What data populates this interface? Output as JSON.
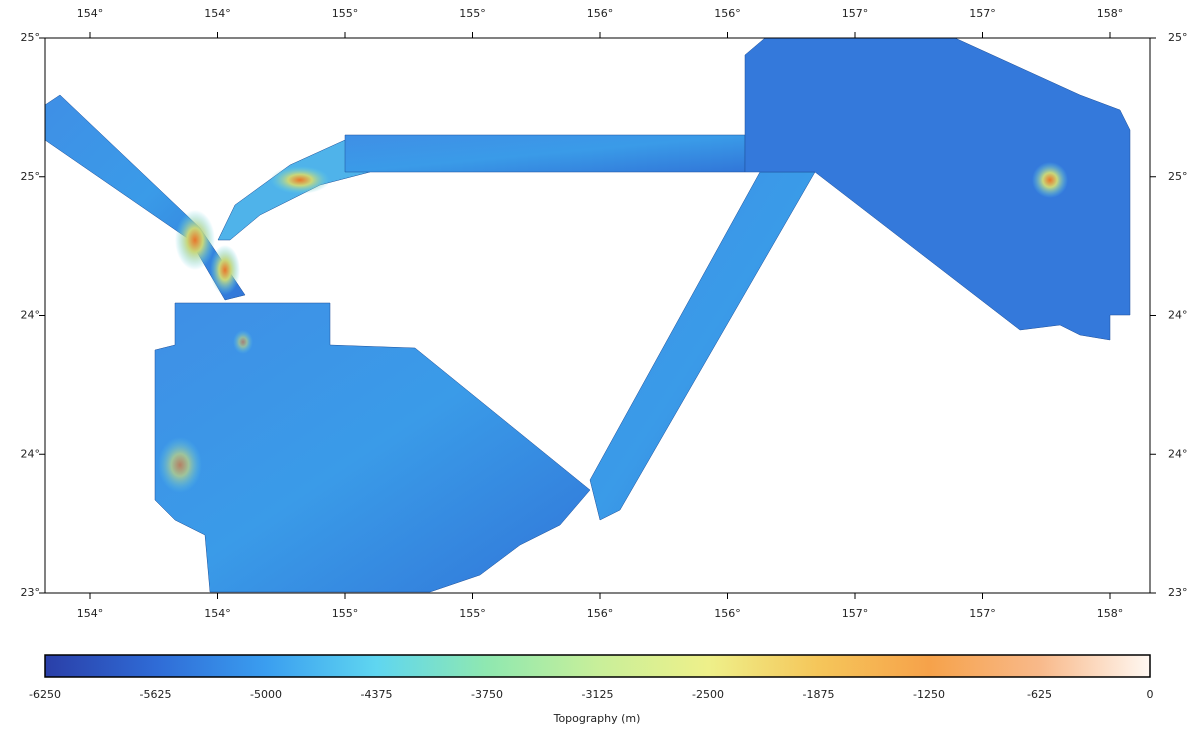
{
  "map": {
    "x_labels": [
      "154°",
      "154°",
      "155°",
      "155°",
      "156°",
      "156°",
      "157°",
      "157°",
      "158°"
    ],
    "y_labels": [
      "25°",
      "25°",
      "24°",
      "24°",
      "23°"
    ]
  },
  "colorbar": {
    "ticks": [
      -6250,
      -5625,
      -5000,
      -4375,
      -3750,
      -3125,
      -2500,
      -1875,
      -1250,
      -625,
      0
    ],
    "label": "Topography (m)"
  }
}
